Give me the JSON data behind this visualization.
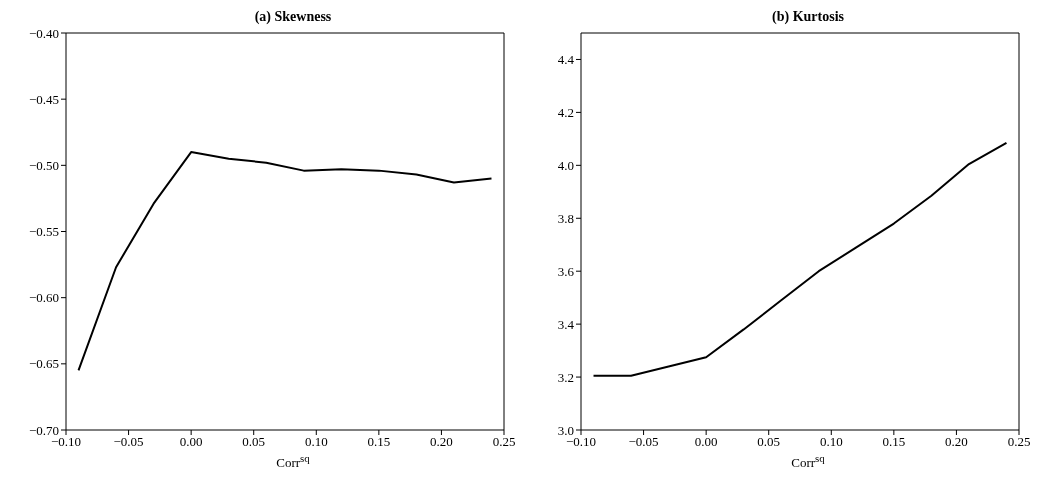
{
  "chart_data": [
    {
      "type": "line",
      "title": "(a) Skewness",
      "xlabel": "Corr$^{sq}$",
      "x": [
        -0.09,
        -0.06,
        -0.03,
        0,
        0.03,
        0.06,
        0.09,
        0.12,
        0.15,
        0.18,
        0.21,
        0.24
      ],
      "series": [
        {
          "color": "#000000",
          "values": [
            -0.655,
            -0.577,
            -0.529,
            -0.49,
            -0.495,
            -0.498,
            -0.504,
            -0.503,
            -0.504,
            -0.507,
            -0.513,
            -0.51
          ]
        }
      ],
      "xlim": [
        -0.1,
        0.25
      ],
      "xticks": [
        {
          "value": -0.1,
          "label": "−0.10"
        },
        {
          "value": -0.05,
          "label": "−0.05"
        },
        {
          "value": 0,
          "label": "0.00"
        },
        {
          "value": 0.05,
          "label": "0.05"
        },
        {
          "value": 0.1,
          "label": "0.10"
        },
        {
          "value": 0.15,
          "label": "0.15"
        },
        {
          "value": 0.2,
          "label": "0.20"
        },
        {
          "value": 0.25,
          "label": "0.25"
        }
      ],
      "ylim": [
        -0.7,
        -0.4
      ],
      "yticks": [
        {
          "value": -0.7,
          "label": "−0.70"
        },
        {
          "value": -0.65,
          "label": "−0.65"
        },
        {
          "value": -0.6,
          "label": "−0.60"
        },
        {
          "value": -0.55,
          "label": "−0.55"
        },
        {
          "value": -0.5,
          "label": "−0.50"
        },
        {
          "value": -0.45,
          "label": "−0.45"
        },
        {
          "value": -0.4,
          "label": "−0.40"
        }
      ],
      "grid": false,
      "legend": false
    },
    {
      "type": "line",
      "title": "(b) Kurtosis",
      "xlabel": "Corr$^{sq}$",
      "x": [
        -0.09,
        -0.06,
        -0.03,
        0,
        0.03,
        0.06,
        0.09,
        0.12,
        0.15,
        0.18,
        0.21,
        0.24
      ],
      "series": [
        {
          "color": "#000000",
          "values": [
            3.205,
            3.205,
            3.24,
            3.275,
            3.38,
            3.49,
            3.6,
            3.69,
            3.78,
            3.885,
            4.005,
            4.085
          ]
        }
      ],
      "xlim": [
        -0.1,
        0.25
      ],
      "xticks": [
        {
          "value": -0.1,
          "label": "−0.10"
        },
        {
          "value": -0.05,
          "label": "−0.05"
        },
        {
          "value": 0,
          "label": "0.00"
        },
        {
          "value": 0.05,
          "label": "0.05"
        },
        {
          "value": 0.1,
          "label": "0.10"
        },
        {
          "value": 0.15,
          "label": "0.15"
        },
        {
          "value": 0.2,
          "label": "0.20"
        },
        {
          "value": 0.25,
          "label": "0.25"
        }
      ],
      "ylim": [
        3.0,
        4.5
      ],
      "yticks": [
        {
          "value": 3.0,
          "label": "3.0"
        },
        {
          "value": 3.2,
          "label": "3.2"
        },
        {
          "value": 3.4,
          "label": "3.4"
        },
        {
          "value": 3.6,
          "label": "3.6"
        },
        {
          "value": 3.8,
          "label": "3.8"
        },
        {
          "value": 4.0,
          "label": "4.0"
        },
        {
          "value": 4.2,
          "label": "4.2"
        },
        {
          "value": 4.4,
          "label": "4.4"
        }
      ],
      "grid": false,
      "legend": false
    }
  ]
}
